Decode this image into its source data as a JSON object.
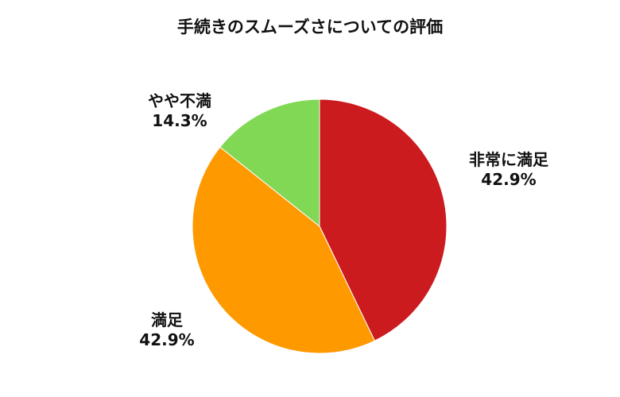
{
  "chart_data": {
    "type": "pie",
    "title": "手続きのスムーズさについての評価",
    "start": "top",
    "direction": "clockwise",
    "slices": [
      {
        "label": "非常に満足",
        "value": 42.9,
        "value_label": "42.9%",
        "color": "#cc1b1f"
      },
      {
        "label": "満足",
        "value": 42.9,
        "value_label": "42.9%",
        "color": "#ff9900"
      },
      {
        "label": "やや不満",
        "value": 14.3,
        "value_label": "14.3%",
        "color": "#80d855"
      }
    ],
    "legend": "none"
  }
}
